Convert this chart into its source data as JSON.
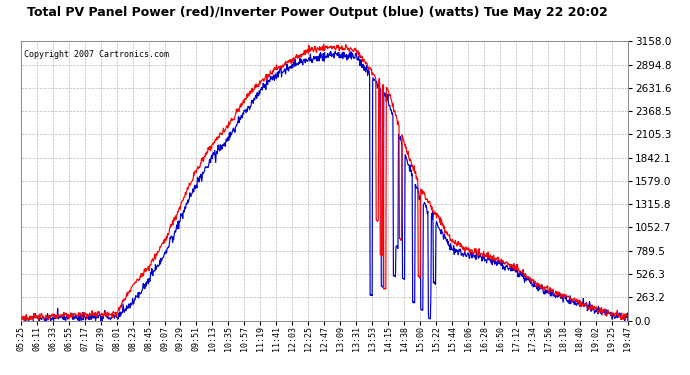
{
  "title": "Total PV Panel Power (red)/Inverter Power Output (blue) (watts) Tue May 22 20:02",
  "copyright": "Copyright 2007 Cartronics.com",
  "plot_bg": "#ffffff",
  "fig_bg": "#ffffff",
  "line_red": "#ff0000",
  "line_blue": "#0000cc",
  "ymin": 0.0,
  "ymax": 3158.0,
  "yticks": [
    0.0,
    263.2,
    526.3,
    789.5,
    1052.7,
    1315.8,
    1579.0,
    1842.1,
    2105.3,
    2368.5,
    2631.6,
    2894.8,
    3158.0
  ],
  "ytick_labels": [
    "0.0",
    "263.2",
    "526.3",
    "789.5",
    "1052.7",
    "1315.8",
    "1579.0",
    "1842.1",
    "2105.3",
    "2368.5",
    "2631.6",
    "2894.8",
    "3158.0"
  ],
  "x_labels": [
    "05:25",
    "06:11",
    "06:33",
    "06:55",
    "07:17",
    "07:39",
    "08:01",
    "08:23",
    "08:45",
    "09:07",
    "09:29",
    "09:51",
    "10:13",
    "10:35",
    "10:57",
    "11:19",
    "11:41",
    "12:03",
    "12:25",
    "12:47",
    "13:09",
    "13:31",
    "13:53",
    "14:15",
    "14:38",
    "15:00",
    "15:22",
    "15:44",
    "16:06",
    "16:28",
    "16:50",
    "17:12",
    "17:34",
    "17:56",
    "18:18",
    "18:40",
    "19:02",
    "19:25",
    "19:47"
  ],
  "grid_color": "#bbbbbb",
  "spine_color": "#888888"
}
